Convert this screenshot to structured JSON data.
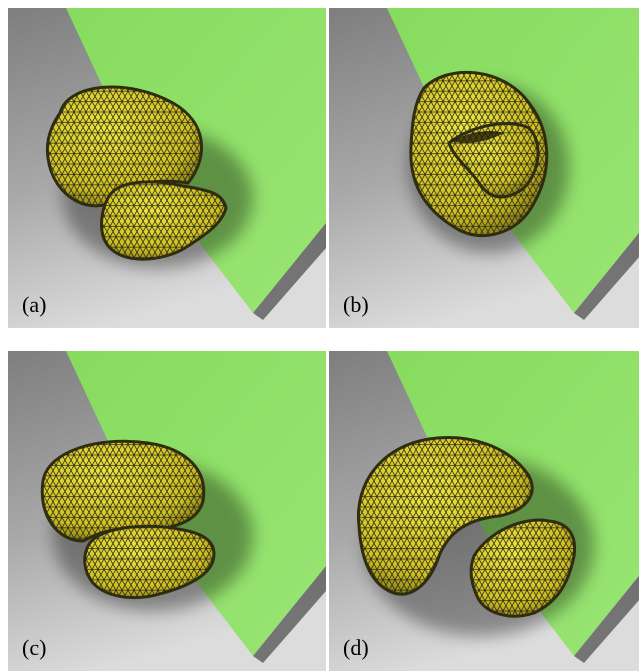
{
  "panels": [
    {
      "id": "a",
      "label": "(a)"
    },
    {
      "id": "b",
      "label": "(b)"
    },
    {
      "id": "c",
      "label": "(c)"
    },
    {
      "id": "d",
      "label": "(d)"
    }
  ],
  "colors": {
    "floor_light": "#c9c9c9",
    "floor_dark": "#7a7a7a",
    "plane_green": "#8fe06a",
    "mesh_fill": "#e3d62a",
    "mesh_line": "#2b2b1a"
  }
}
